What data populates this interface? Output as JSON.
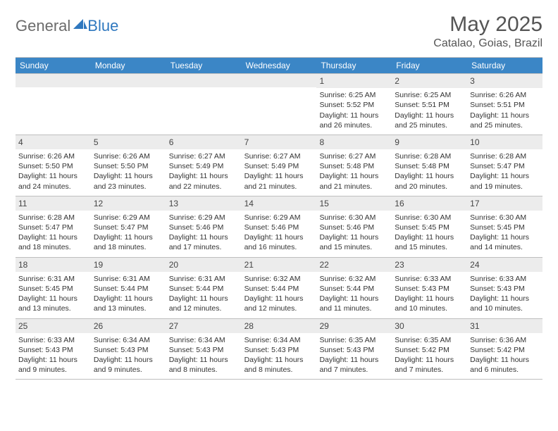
{
  "logo": {
    "text1": "General",
    "text2": "Blue"
  },
  "title": "May 2025",
  "location": "Catalao, Goias, Brazil",
  "colors": {
    "header_bg": "#3b86c6",
    "header_text": "#ffffff",
    "daynum_bg": "#ececec",
    "border": "#bfbfbf",
    "body_text": "#333333",
    "title_text": "#555555",
    "logo_gray": "#6b6b6b",
    "logo_blue": "#2f78bf"
  },
  "weekdays": [
    "Sunday",
    "Monday",
    "Tuesday",
    "Wednesday",
    "Thursday",
    "Friday",
    "Saturday"
  ],
  "weeks": [
    [
      {
        "n": "",
        "sr": "",
        "ss": "",
        "dl": ""
      },
      {
        "n": "",
        "sr": "",
        "ss": "",
        "dl": ""
      },
      {
        "n": "",
        "sr": "",
        "ss": "",
        "dl": ""
      },
      {
        "n": "",
        "sr": "",
        "ss": "",
        "dl": ""
      },
      {
        "n": "1",
        "sr": "Sunrise: 6:25 AM",
        "ss": "Sunset: 5:52 PM",
        "dl": "Daylight: 11 hours and 26 minutes."
      },
      {
        "n": "2",
        "sr": "Sunrise: 6:25 AM",
        "ss": "Sunset: 5:51 PM",
        "dl": "Daylight: 11 hours and 25 minutes."
      },
      {
        "n": "3",
        "sr": "Sunrise: 6:26 AM",
        "ss": "Sunset: 5:51 PM",
        "dl": "Daylight: 11 hours and 25 minutes."
      }
    ],
    [
      {
        "n": "4",
        "sr": "Sunrise: 6:26 AM",
        "ss": "Sunset: 5:50 PM",
        "dl": "Daylight: 11 hours and 24 minutes."
      },
      {
        "n": "5",
        "sr": "Sunrise: 6:26 AM",
        "ss": "Sunset: 5:50 PM",
        "dl": "Daylight: 11 hours and 23 minutes."
      },
      {
        "n": "6",
        "sr": "Sunrise: 6:27 AM",
        "ss": "Sunset: 5:49 PM",
        "dl": "Daylight: 11 hours and 22 minutes."
      },
      {
        "n": "7",
        "sr": "Sunrise: 6:27 AM",
        "ss": "Sunset: 5:49 PM",
        "dl": "Daylight: 11 hours and 21 minutes."
      },
      {
        "n": "8",
        "sr": "Sunrise: 6:27 AM",
        "ss": "Sunset: 5:48 PM",
        "dl": "Daylight: 11 hours and 21 minutes."
      },
      {
        "n": "9",
        "sr": "Sunrise: 6:28 AM",
        "ss": "Sunset: 5:48 PM",
        "dl": "Daylight: 11 hours and 20 minutes."
      },
      {
        "n": "10",
        "sr": "Sunrise: 6:28 AM",
        "ss": "Sunset: 5:47 PM",
        "dl": "Daylight: 11 hours and 19 minutes."
      }
    ],
    [
      {
        "n": "11",
        "sr": "Sunrise: 6:28 AM",
        "ss": "Sunset: 5:47 PM",
        "dl": "Daylight: 11 hours and 18 minutes."
      },
      {
        "n": "12",
        "sr": "Sunrise: 6:29 AM",
        "ss": "Sunset: 5:47 PM",
        "dl": "Daylight: 11 hours and 18 minutes."
      },
      {
        "n": "13",
        "sr": "Sunrise: 6:29 AM",
        "ss": "Sunset: 5:46 PM",
        "dl": "Daylight: 11 hours and 17 minutes."
      },
      {
        "n": "14",
        "sr": "Sunrise: 6:29 AM",
        "ss": "Sunset: 5:46 PM",
        "dl": "Daylight: 11 hours and 16 minutes."
      },
      {
        "n": "15",
        "sr": "Sunrise: 6:30 AM",
        "ss": "Sunset: 5:46 PM",
        "dl": "Daylight: 11 hours and 15 minutes."
      },
      {
        "n": "16",
        "sr": "Sunrise: 6:30 AM",
        "ss": "Sunset: 5:45 PM",
        "dl": "Daylight: 11 hours and 15 minutes."
      },
      {
        "n": "17",
        "sr": "Sunrise: 6:30 AM",
        "ss": "Sunset: 5:45 PM",
        "dl": "Daylight: 11 hours and 14 minutes."
      }
    ],
    [
      {
        "n": "18",
        "sr": "Sunrise: 6:31 AM",
        "ss": "Sunset: 5:45 PM",
        "dl": "Daylight: 11 hours and 13 minutes."
      },
      {
        "n": "19",
        "sr": "Sunrise: 6:31 AM",
        "ss": "Sunset: 5:44 PM",
        "dl": "Daylight: 11 hours and 13 minutes."
      },
      {
        "n": "20",
        "sr": "Sunrise: 6:31 AM",
        "ss": "Sunset: 5:44 PM",
        "dl": "Daylight: 11 hours and 12 minutes."
      },
      {
        "n": "21",
        "sr": "Sunrise: 6:32 AM",
        "ss": "Sunset: 5:44 PM",
        "dl": "Daylight: 11 hours and 12 minutes."
      },
      {
        "n": "22",
        "sr": "Sunrise: 6:32 AM",
        "ss": "Sunset: 5:44 PM",
        "dl": "Daylight: 11 hours and 11 minutes."
      },
      {
        "n": "23",
        "sr": "Sunrise: 6:33 AM",
        "ss": "Sunset: 5:43 PM",
        "dl": "Daylight: 11 hours and 10 minutes."
      },
      {
        "n": "24",
        "sr": "Sunrise: 6:33 AM",
        "ss": "Sunset: 5:43 PM",
        "dl": "Daylight: 11 hours and 10 minutes."
      }
    ],
    [
      {
        "n": "25",
        "sr": "Sunrise: 6:33 AM",
        "ss": "Sunset: 5:43 PM",
        "dl": "Daylight: 11 hours and 9 minutes."
      },
      {
        "n": "26",
        "sr": "Sunrise: 6:34 AM",
        "ss": "Sunset: 5:43 PM",
        "dl": "Daylight: 11 hours and 9 minutes."
      },
      {
        "n": "27",
        "sr": "Sunrise: 6:34 AM",
        "ss": "Sunset: 5:43 PM",
        "dl": "Daylight: 11 hours and 8 minutes."
      },
      {
        "n": "28",
        "sr": "Sunrise: 6:34 AM",
        "ss": "Sunset: 5:43 PM",
        "dl": "Daylight: 11 hours and 8 minutes."
      },
      {
        "n": "29",
        "sr": "Sunrise: 6:35 AM",
        "ss": "Sunset: 5:43 PM",
        "dl": "Daylight: 11 hours and 7 minutes."
      },
      {
        "n": "30",
        "sr": "Sunrise: 6:35 AM",
        "ss": "Sunset: 5:42 PM",
        "dl": "Daylight: 11 hours and 7 minutes."
      },
      {
        "n": "31",
        "sr": "Sunrise: 6:36 AM",
        "ss": "Sunset: 5:42 PM",
        "dl": "Daylight: 11 hours and 6 minutes."
      }
    ]
  ]
}
